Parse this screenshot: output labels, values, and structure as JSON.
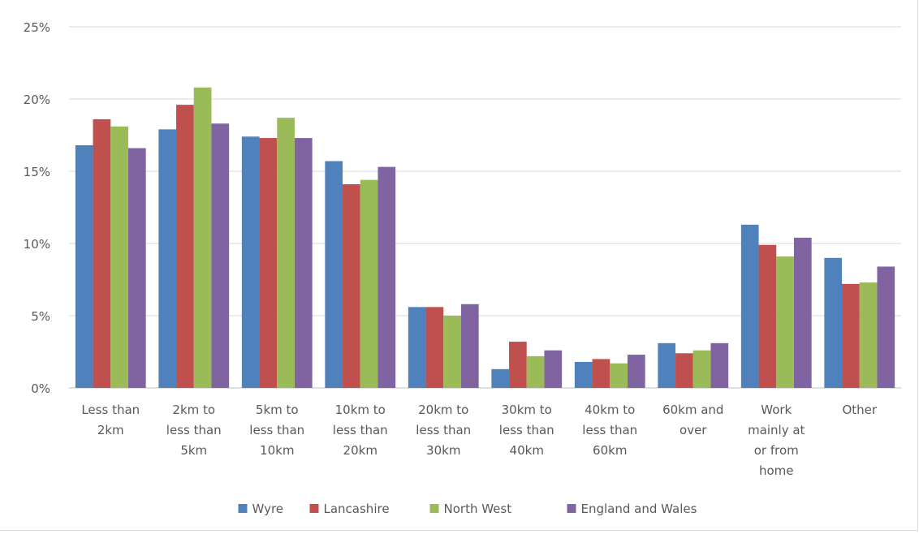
{
  "chart_data": {
    "type": "bar",
    "title": "",
    "xlabel": "",
    "ylabel": "",
    "ylim": [
      0,
      25
    ],
    "yticks": [
      0,
      5,
      10,
      15,
      20,
      25
    ],
    "ytick_labels": [
      "0%",
      "5%",
      "10%",
      "15%",
      "20%",
      "25%"
    ],
    "grid": true,
    "legend_position": "bottom",
    "categories": [
      [
        "Less than",
        "2km"
      ],
      [
        "2km to",
        "less than",
        "5km"
      ],
      [
        "5km to",
        "less than",
        "10km"
      ],
      [
        "10km to",
        "less than",
        "20km"
      ],
      [
        "20km to",
        "less than",
        "30km"
      ],
      [
        "30km to",
        "less than",
        "40km"
      ],
      [
        "40km to",
        "less than",
        "60km"
      ],
      [
        "60km and",
        "over"
      ],
      [
        "Work",
        "mainly at",
        "or from",
        "home"
      ],
      [
        "Other"
      ]
    ],
    "series": [
      {
        "name": "Wyre",
        "color": "#4f81bd",
        "values": [
          16.8,
          17.9,
          17.4,
          15.7,
          5.6,
          1.3,
          1.8,
          3.1,
          11.3,
          9.0
        ]
      },
      {
        "name": "Lancashire",
        "color": "#c0504d",
        "values": [
          18.6,
          19.6,
          17.3,
          14.1,
          5.6,
          3.2,
          2.0,
          2.4,
          9.9,
          7.2
        ]
      },
      {
        "name": "North West",
        "color": "#9bbb59",
        "values": [
          18.1,
          20.8,
          18.7,
          14.4,
          5.0,
          2.2,
          1.7,
          2.6,
          9.1,
          7.3
        ]
      },
      {
        "name": "England and Wales",
        "color": "#8064a2",
        "values": [
          16.6,
          18.3,
          17.3,
          15.3,
          5.8,
          2.6,
          2.3,
          3.1,
          10.4,
          8.4
        ]
      }
    ]
  }
}
